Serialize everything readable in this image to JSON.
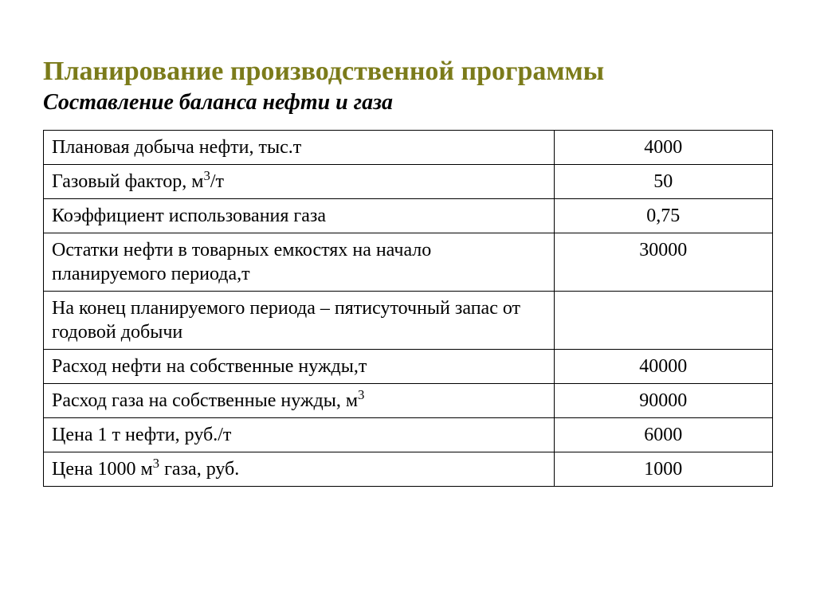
{
  "header": {
    "title": "Планирование производственной программы",
    "subtitle": "Составление баланса нефти и газа"
  },
  "table": {
    "rows": [
      {
        "label_html": "Плановая добыча нефти, тыс.т",
        "value": "4000"
      },
      {
        "label_html": "Газовый фактор, м<sup>3</sup>/т",
        "value": "50"
      },
      {
        "label_html": "Коэффициент использования газа",
        "value": "0,75"
      },
      {
        "label_html": "Остатки нефти в товарных емкостях на начало планируемого периода,т",
        "value": "30000"
      },
      {
        "label_html": "На конец планируемого периода – пятисуточный запас от годовой добычи",
        "value": ""
      },
      {
        "label_html": "Расход нефти на собственные нужды,т",
        "value": "40000"
      },
      {
        "label_html": "Расход газа на собственные нужды, м<sup>3</sup>",
        "value": "90000"
      },
      {
        "label_html": "Цена 1 т нефти, руб./т",
        "value": "6000"
      },
      {
        "label_html": "Цена 1000 м<sup>3</sup> газа, руб.",
        "value": "1000"
      }
    ]
  },
  "style": {
    "title_color": "#7b7b1a",
    "title_fontsize": 34,
    "subtitle_fontsize": 28,
    "cell_fontsize": 24,
    "border_color": "#000000",
    "background_color": "#ffffff",
    "label_col_width_pct": 70,
    "value_col_width_pct": 30
  }
}
